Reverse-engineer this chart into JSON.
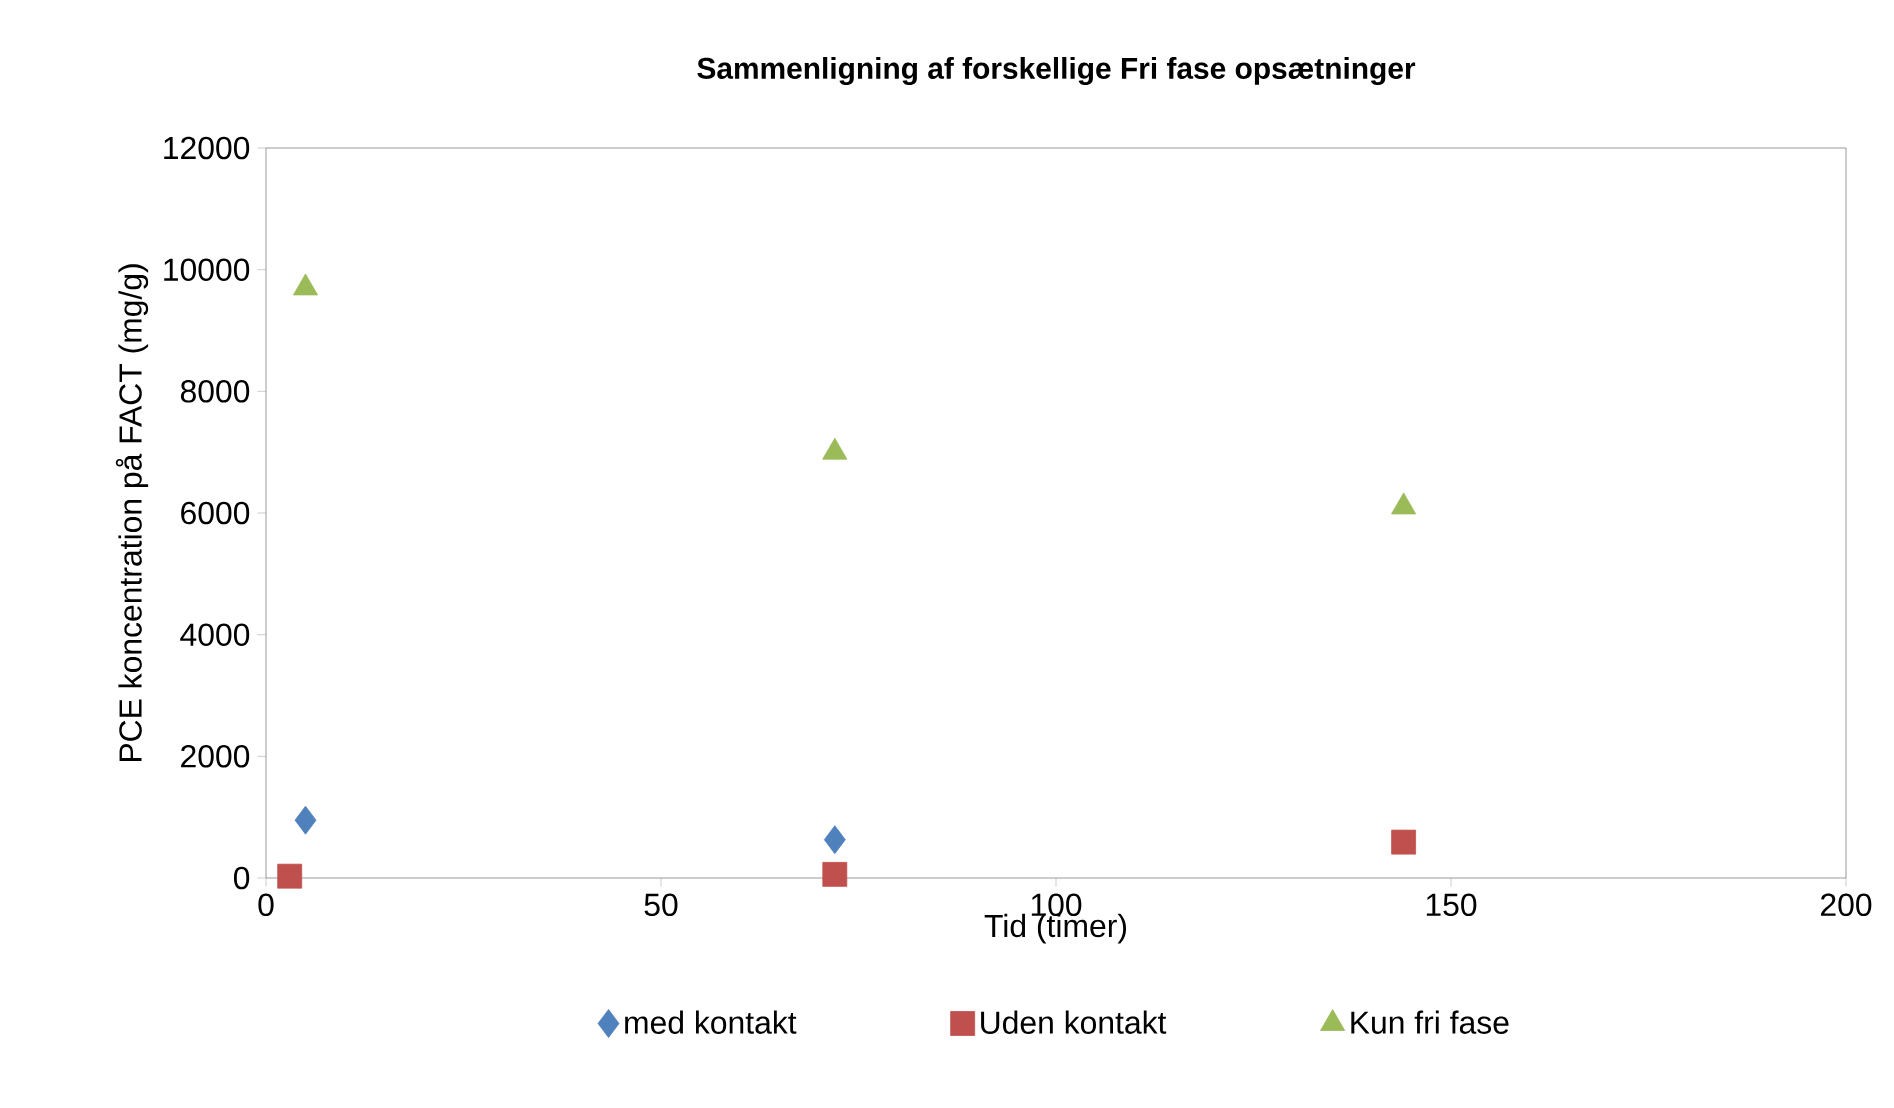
{
  "chart_data": {
    "type": "scatter",
    "title": "Sammenligning af forskellige Fri fase opsætninger",
    "xlabel": "Tid (timer)",
    "ylabel": "PCE koncentration på FACT (mg/g)",
    "xlim": [
      0,
      200
    ],
    "xticks": [
      0,
      50,
      100,
      150,
      200
    ],
    "ylim": [
      0,
      12000
    ],
    "yticks": [
      0,
      2000,
      4000,
      6000,
      8000,
      10000,
      12000
    ],
    "legend": "bottom",
    "series": [
      {
        "name": "med kontakt",
        "color": "#4f81bd",
        "marker": "diamond",
        "x": [
          5,
          72
        ],
        "values": [
          950,
          630
        ]
      },
      {
        "name": "Uden kontakt",
        "color": "#c0504d",
        "marker": "square",
        "x": [
          3,
          72,
          144
        ],
        "values": [
          30,
          60,
          590
        ]
      },
      {
        "name": "Kun fri fase",
        "color": "#9bbb59",
        "marker": "triangle",
        "x": [
          5,
          72,
          144
        ],
        "values": [
          9700,
          7000,
          6100
        ]
      }
    ]
  }
}
